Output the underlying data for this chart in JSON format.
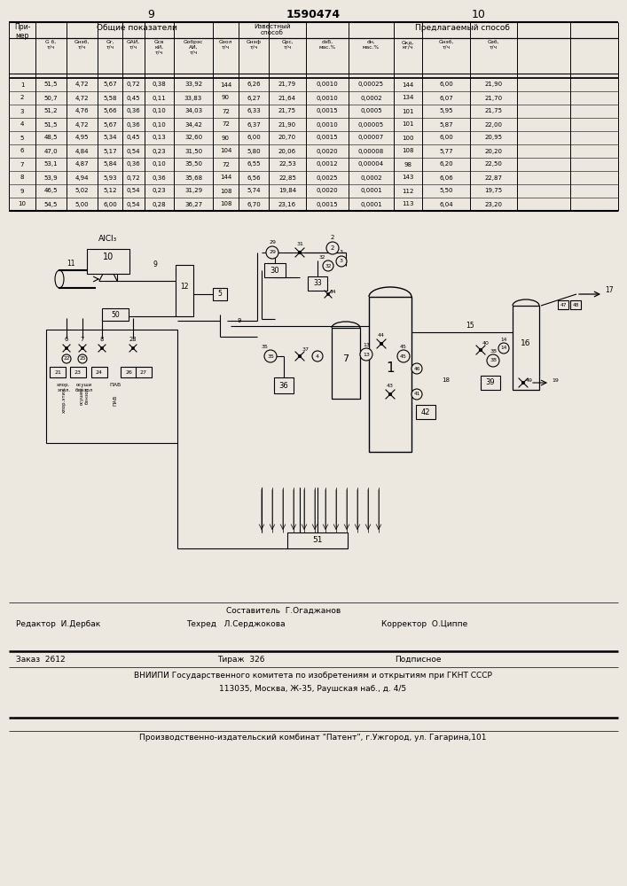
{
  "page_numbers": [
    "9",
    "10"
  ],
  "patent_number": "1590474",
  "bg_color": "#ece8e0",
  "table": {
    "rows": [
      [
        "1",
        "51,5",
        "4,72",
        "5,67",
        "0,72",
        "0,38",
        "33,92",
        "144",
        "6,26",
        "21,79",
        "0,0010",
        "0,00025",
        "144",
        "6,00",
        "21,90"
      ],
      [
        "2",
        "50,7",
        "4,72",
        "5,58",
        "0,45",
        "0,11",
        "33,83",
        "90",
        "6,27",
        "21,64",
        "0,0010",
        "0,0002",
        "134",
        "6,07",
        "21,70"
      ],
      [
        "3",
        "51,2",
        "4,76",
        "5,66",
        "0,36",
        "0,10",
        "34,03",
        "72",
        "6,33",
        "21,75",
        "0,0015",
        "0,0005",
        "101",
        "5,95",
        "21,75"
      ],
      [
        "4",
        "51,5",
        "4,72",
        "5,67",
        "0,36",
        "0,10",
        "34,42",
        "72",
        "6,37",
        "21,90",
        "0,0010",
        "0,00005",
        "101",
        "5,87",
        "22,00"
      ],
      [
        "5",
        "48,5",
        "4,95",
        "5,34",
        "0,45",
        "0,13",
        "32,60",
        "90",
        "6,00",
        "20,70",
        "0,0015",
        "0,00007",
        "100",
        "6,00",
        "20,95"
      ],
      [
        "6",
        "47,0",
        "4,84",
        "5,17",
        "0,54",
        "0,23",
        "31,50",
        "104",
        "5,80",
        "20,06",
        "0,0020",
        "0,00008",
        "108",
        "5,77",
        "20,20"
      ],
      [
        "7",
        "53,1",
        "4,87",
        "5,84",
        "0,36",
        "0,10",
        "35,50",
        "72",
        "6,55",
        "22,53",
        "0,0012",
        "0,00004",
        "98",
        "6,20",
        "22,50"
      ],
      [
        "8",
        "53,9",
        "4,94",
        "5,93",
        "0,72",
        "0,36",
        "35,68",
        "144",
        "6,56",
        "22,85",
        "0,0025",
        "0,0002",
        "143",
        "6,06",
        "22,87"
      ],
      [
        "9",
        "46,5",
        "5,02",
        "5,12",
        "0,54",
        "0,23",
        "31,29",
        "108",
        "5,74",
        "19,84",
        "0,0020",
        "0,0001",
        "112",
        "5,50",
        "19,75"
      ],
      [
        "10",
        "54,5",
        "5,00",
        "6,00",
        "0,54",
        "0,28",
        "36,27",
        "108",
        "6,70",
        "23,16",
        "0,0015",
        "0,0001",
        "113",
        "6,04",
        "23,20"
      ]
    ]
  },
  "footer": {
    "sostavitel": "Составитель  Г.Огаджанов",
    "redaktor": "Редактор  И.Дербак",
    "tehred": "Техред   Л.Серджокова",
    "korrektor": "Корректор  О.Циппе",
    "zakaz": "Заказ  2612",
    "tirazh": "Тираж  326",
    "podpisnoe": "Подписное",
    "vniip1": "ВНИИПИ Государственного комитета по изобретениям и открытиям при ГКНТ СССР",
    "vniip2": "113035, Москва, Ж-35, Раушская наб., д. 4/5",
    "kombinat": "Производственно-издательский комбинат \"Патент\", г.Ужгород, ул. Гагарина,101"
  }
}
